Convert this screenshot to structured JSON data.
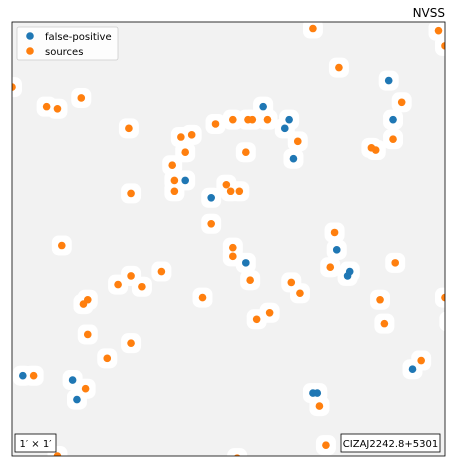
{
  "chart_data": {
    "type": "scatter",
    "title": "NVSS",
    "xlim": [
      0,
      100
    ],
    "ylim": [
      0,
      100
    ],
    "grid": false,
    "legend_position": "top-left",
    "scale_label": "1′ × 1′",
    "cluster_label": "CIZAJ2242.8+5301",
    "colors": {
      "false_positive": "#1f77b4",
      "sources": "#ff7f0e",
      "background": "#f2f2f2",
      "mask": "#ffffff"
    },
    "series": [
      {
        "name": "false-positive",
        "points": [
          [
            58.0,
            80.5
          ],
          [
            65.0,
            68.5
          ],
          [
            64.0,
            77.5
          ],
          [
            63.0,
            75.5
          ],
          [
            40.0,
            63.5
          ],
          [
            46.0,
            59.5
          ],
          [
            54.0,
            44.5
          ],
          [
            75.0,
            47.5
          ],
          [
            78.0,
            42.5
          ],
          [
            77.5,
            41.5
          ],
          [
            87.0,
            86.5
          ],
          [
            88.0,
            77.5
          ],
          [
            2.5,
            18.5
          ],
          [
            14.0,
            17.5
          ],
          [
            15.0,
            13.0
          ],
          [
            69.5,
            14.5
          ],
          [
            70.5,
            14.5
          ],
          [
            92.5,
            20.0
          ]
        ]
      },
      {
        "name": "sources",
        "points": [
          [
            69.5,
            98.5
          ],
          [
            98.5,
            98.0
          ],
          [
            100.0,
            94.5
          ],
          [
            75.5,
            89.5
          ],
          [
            0.0,
            85.0
          ],
          [
            16.0,
            82.5
          ],
          [
            8.0,
            80.5
          ],
          [
            10.5,
            80.0
          ],
          [
            90.0,
            81.5
          ],
          [
            27.0,
            75.5
          ],
          [
            47.0,
            76.5
          ],
          [
            51.0,
            77.5
          ],
          [
            54.5,
            77.5
          ],
          [
            55.5,
            77.5
          ],
          [
            59.0,
            77.5
          ],
          [
            41.5,
            74.0
          ],
          [
            39.0,
            73.5
          ],
          [
            66.0,
            72.5
          ],
          [
            88.0,
            73.0
          ],
          [
            84.0,
            70.5
          ],
          [
            83.0,
            71.0
          ],
          [
            54.0,
            70.0
          ],
          [
            40.0,
            70.0
          ],
          [
            37.0,
            67.0
          ],
          [
            37.5,
            63.5
          ],
          [
            37.5,
            61.0
          ],
          [
            52.5,
            61.0
          ],
          [
            50.5,
            61.0
          ],
          [
            27.5,
            60.5
          ],
          [
            49.5,
            62.5
          ],
          [
            46.0,
            53.5
          ],
          [
            11.5,
            48.5
          ],
          [
            74.5,
            51.5
          ],
          [
            51.0,
            48.0
          ],
          [
            51.0,
            46.0
          ],
          [
            73.5,
            43.5
          ],
          [
            88.5,
            44.5
          ],
          [
            34.5,
            42.5
          ],
          [
            27.5,
            41.5
          ],
          [
            24.5,
            39.5
          ],
          [
            30.0,
            39.0
          ],
          [
            55.0,
            40.5
          ],
          [
            64.5,
            40.0
          ],
          [
            66.5,
            37.5
          ],
          [
            44.0,
            36.5
          ],
          [
            17.5,
            36.0
          ],
          [
            16.5,
            35.0
          ],
          [
            85.0,
            36.0
          ],
          [
            100.0,
            36.5
          ],
          [
            59.5,
            33.0
          ],
          [
            56.5,
            31.5
          ],
          [
            101.0,
            31.0
          ],
          [
            86.0,
            30.5
          ],
          [
            17.5,
            28.0
          ],
          [
            27.5,
            26.0
          ],
          [
            22.0,
            22.5
          ],
          [
            94.5,
            22.0
          ],
          [
            5.0,
            18.5
          ],
          [
            17.0,
            15.5
          ],
          [
            71.0,
            11.5
          ],
          [
            72.5,
            2.5
          ],
          [
            10.5,
            0.0
          ],
          [
            52.0,
            -0.5
          ]
        ]
      }
    ]
  }
}
